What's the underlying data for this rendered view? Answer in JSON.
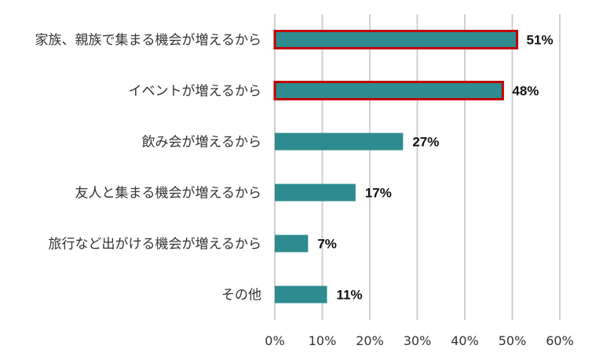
{
  "chart_data": {
    "type": "bar",
    "orientation": "horizontal",
    "categories": [
      "家族、親族で集まる機会が増えるから",
      "イベントが増えるから",
      "飲み会が増えるから",
      "友人と集まる機会が増えるから",
      "旅行など出がける機会が増えるから",
      "その他"
    ],
    "values": [
      51,
      48,
      27,
      17,
      7,
      11
    ],
    "value_labels": [
      "51%",
      "48%",
      "27%",
      "17%",
      "7%",
      "11%"
    ],
    "highlighted": [
      true,
      true,
      false,
      false,
      false,
      false
    ],
    "xlim": [
      0,
      60
    ],
    "xticks": [
      "0%",
      "10%",
      "20%",
      "30%",
      "40%",
      "50%",
      "60%"
    ],
    "grid": true,
    "colors": {
      "bar": "#2e8b8f",
      "highlight_border": "#c00000",
      "grid": "#d0d0d0"
    }
  }
}
